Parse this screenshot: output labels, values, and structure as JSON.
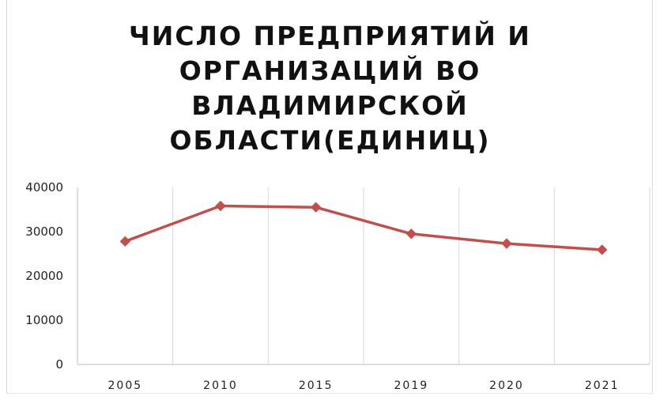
{
  "chart_data": {
    "type": "line",
    "title_lines": [
      "ЧИСЛО ПРЕДПРИЯТИЙ И",
      "ОРГАНИЗАЦИЙ ВО",
      "ВЛАДИМИРСКОЙ",
      "ОБЛАСТИ(ЕДИНИЦ)"
    ],
    "categories": [
      "2005",
      "2010",
      "2015",
      "2019",
      "2020",
      "2021"
    ],
    "series": [
      {
        "values": [
          27800,
          35800,
          35500,
          29500,
          27300,
          25900
        ],
        "color": "#c0504d",
        "marker": "diamond"
      }
    ],
    "ylim": [
      0,
      40000
    ],
    "yticks": [
      "0",
      "10000",
      "20000",
      "30000",
      "40000"
    ],
    "grid": "vertical-category-lines",
    "legend": "none"
  }
}
